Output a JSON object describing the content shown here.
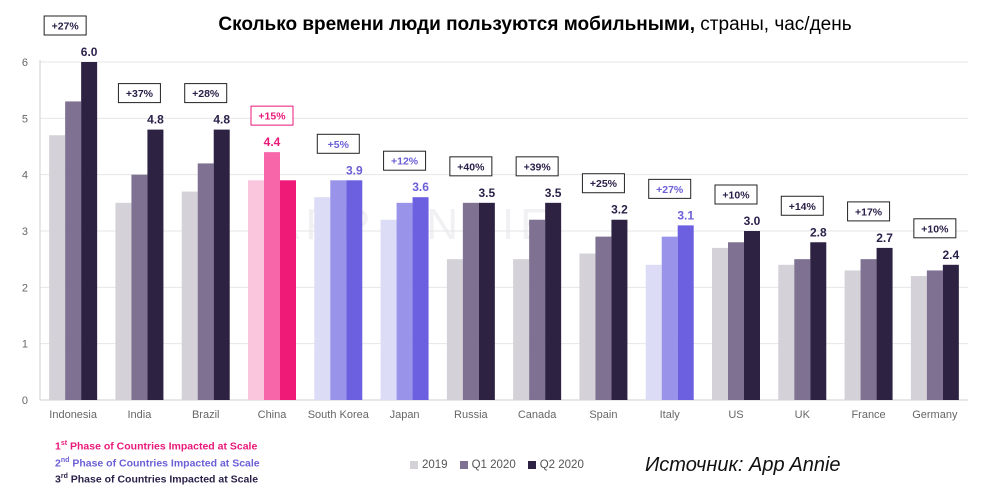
{
  "title": {
    "bold": "Сколько времени люди пользуются мобильными,",
    "regular": " страны, час/день"
  },
  "source": "Источник: App Annie",
  "watermark": "APP ANNIE",
  "phase_legend": {
    "phase1": {
      "sup": "st",
      "num": "1",
      "text": " Phase of Countries Impacted at Scale",
      "color": "#e8197a"
    },
    "phase2": {
      "sup": "nd",
      "num": "2",
      "text": " Phase of Countries Impacted at Scale",
      "color": "#6b5fd6"
    },
    "phase3": {
      "sup": "rd",
      "num": "3",
      "text": " Phase of Countries Impacted at Scale",
      "color": "#2a1f48"
    }
  },
  "chart_data": {
    "type": "bar",
    "ylim": [
      0,
      6
    ],
    "yticks": [
      0,
      1,
      2,
      3,
      4,
      5,
      6
    ],
    "grid": true,
    "categories": [
      "Indonesia",
      "India",
      "Brazil",
      "China",
      "South Korea",
      "Japan",
      "Russia",
      "Canada",
      "Spain",
      "Italy",
      "US",
      "UK",
      "France",
      "Germany"
    ],
    "series": [
      {
        "name": "2019",
        "values": [
          4.7,
          3.5,
          3.7,
          3.9,
          3.6,
          3.2,
          2.5,
          2.5,
          2.6,
          2.4,
          2.7,
          2.4,
          2.3,
          2.2
        ]
      },
      {
        "name": "Q1 2020",
        "values": [
          5.3,
          4.0,
          4.2,
          4.4,
          3.9,
          3.5,
          3.5,
          3.2,
          2.9,
          2.9,
          2.8,
          2.5,
          2.5,
          2.3
        ]
      },
      {
        "name": "Q2 2020",
        "values": [
          6.0,
          4.8,
          4.8,
          3.9,
          3.9,
          3.6,
          3.5,
          3.5,
          3.2,
          3.1,
          3.0,
          2.8,
          2.7,
          2.4
        ]
      }
    ],
    "value_labels": [
      "6.0",
      "4.8",
      "4.8",
      "4.4",
      "3.9",
      "3.6",
      "3.5",
      "3.5",
      "3.2",
      "3.1",
      "3.0",
      "2.8",
      "2.7",
      "2.4"
    ],
    "growth_labels": [
      "+27%",
      "+37%",
      "+28%",
      "+15%",
      "+5%",
      "+12%",
      "+40%",
      "+39%",
      "+25%",
      "+27%",
      "+10%",
      "+14%",
      "+17%",
      "+10%"
    ],
    "phase": [
      3,
      3,
      3,
      1,
      2,
      2,
      3,
      3,
      3,
      2,
      3,
      3,
      3,
      3
    ],
    "label_series": [
      2,
      2,
      2,
      1,
      2,
      2,
      2,
      2,
      2,
      2,
      2,
      2,
      2,
      2
    ],
    "colors": {
      "phase1": [
        "#f9c6dd",
        "#f766a8",
        "#ef1a78"
      ],
      "phase2": [
        "#dcdcf7",
        "#9a93ea",
        "#6c5fe0"
      ],
      "phase3": [
        "#d4d1d8",
        "#7e7191",
        "#2e2243"
      ],
      "italy": [
        "#dcdcf7",
        "#9a93ea",
        "#6c5fe0"
      ]
    },
    "label_colors": {
      "phase1": "#e8197a",
      "phase2": "#6b5fd6",
      "phase3": "#2a1f48"
    },
    "legend": [
      {
        "label": "2019",
        "color": "#d4d1d8"
      },
      {
        "label": "Q1 2020",
        "color": "#7e7191"
      },
      {
        "label": "Q2 2020",
        "color": "#2e2243"
      }
    ]
  }
}
